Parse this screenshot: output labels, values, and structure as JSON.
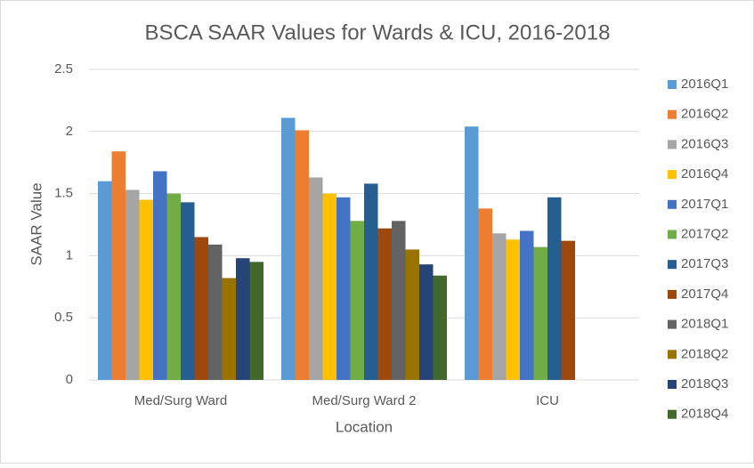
{
  "chart_data": {
    "type": "bar",
    "title": "BSCA SAAR Values for Wards & ICU, 2016-2018",
    "x_label": "Location",
    "y_label": "SAAR Value",
    "categories": [
      "Med/Surg Ward",
      "Med/Surg Ward 2",
      "ICU"
    ],
    "ylim": [
      0,
      2.5
    ],
    "yticks": [
      0,
      0.5,
      1,
      1.5,
      2,
      2.5
    ],
    "grid": true,
    "legend": "right",
    "series": [
      {
        "name": "2016Q1",
        "color": "#5b9bd5",
        "values": [
          1.6,
          2.11,
          2.04
        ]
      },
      {
        "name": "2016Q2",
        "color": "#ed7d31",
        "values": [
          1.84,
          2.01,
          1.38
        ]
      },
      {
        "name": "2016Q3",
        "color": "#a5a5a5",
        "values": [
          1.53,
          1.63,
          1.18
        ]
      },
      {
        "name": "2016Q4",
        "color": "#ffc000",
        "values": [
          1.45,
          1.5,
          1.13
        ]
      },
      {
        "name": "2017Q1",
        "color": "#4472c4",
        "values": [
          1.68,
          1.47,
          1.2
        ]
      },
      {
        "name": "2017Q2",
        "color": "#70ad47",
        "values": [
          1.5,
          1.28,
          1.07
        ]
      },
      {
        "name": "2017Q3",
        "color": "#255e91",
        "values": [
          1.43,
          1.58,
          1.47
        ]
      },
      {
        "name": "2017Q4",
        "color": "#9e480e",
        "values": [
          1.15,
          1.22,
          1.12
        ]
      },
      {
        "name": "2018Q1",
        "color": "#636363",
        "values": [
          1.09,
          1.28,
          null
        ]
      },
      {
        "name": "2018Q2",
        "color": "#997300",
        "values": [
          0.82,
          1.05,
          null
        ]
      },
      {
        "name": "2018Q3",
        "color": "#264478",
        "values": [
          0.98,
          0.93,
          null
        ]
      },
      {
        "name": "2018Q4",
        "color": "#43682b",
        "values": [
          0.95,
          0.84,
          null
        ]
      }
    ]
  }
}
